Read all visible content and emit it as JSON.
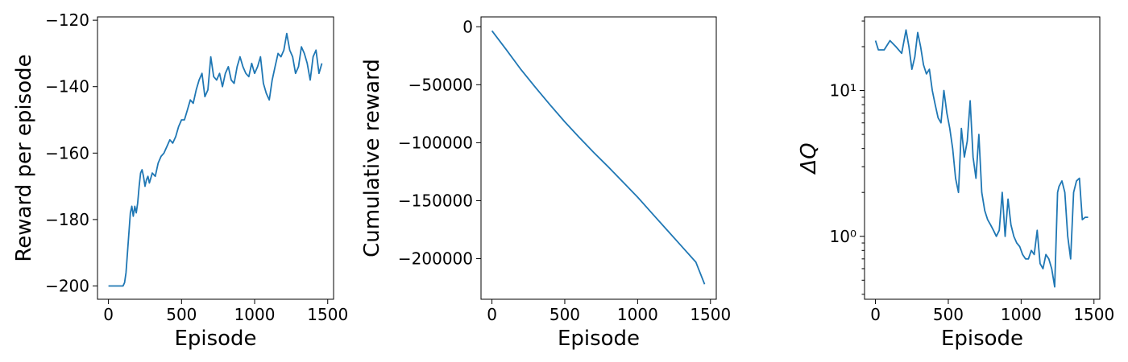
{
  "colors": {
    "series": "#1f77b4"
  },
  "chart_data": [
    {
      "type": "line",
      "xlabel": "Episode",
      "ylabel": "Reward per episode",
      "xlim": [
        -75,
        1540
      ],
      "ylim": [
        -204,
        -119
      ],
      "x_ticks": [
        0,
        500,
        1000,
        1500
      ],
      "x_tick_labels": [
        "0",
        "500",
        "1000",
        "1500"
      ],
      "y_ticks": [
        -200,
        -180,
        -160,
        -140,
        -120
      ],
      "y_tick_labels": [
        "−200",
        "−180",
        "−160",
        "−140",
        "−120"
      ],
      "series": [
        {
          "x": [
            0,
            50,
            100,
            110,
            120,
            130,
            140,
            150,
            160,
            170,
            180,
            190,
            200,
            210,
            220,
            230,
            240,
            250,
            260,
            270,
            280,
            300,
            320,
            340,
            360,
            380,
            400,
            420,
            440,
            460,
            480,
            500,
            520,
            540,
            560,
            580,
            600,
            620,
            640,
            660,
            680,
            700,
            720,
            740,
            760,
            780,
            800,
            820,
            840,
            860,
            880,
            900,
            920,
            940,
            960,
            980,
            1000,
            1020,
            1040,
            1060,
            1080,
            1100,
            1120,
            1140,
            1160,
            1180,
            1200,
            1220,
            1240,
            1260,
            1280,
            1300,
            1320,
            1340,
            1360,
            1380,
            1400,
            1420,
            1440,
            1460
          ],
          "y": [
            -200,
            -200,
            -200,
            -199,
            -196,
            -190,
            -184,
            -178,
            -176,
            -179,
            -176,
            -178,
            -175,
            -170,
            -166,
            -165,
            -167,
            -170,
            -168,
            -167,
            -169,
            -166,
            -167,
            -163,
            -161,
            -160,
            -158,
            -156,
            -157,
            -155,
            -152,
            -150,
            -150,
            -147,
            -144,
            -145,
            -141,
            -138,
            -136,
            -143,
            -141,
            -131,
            -137,
            -138,
            -136,
            -140,
            -136,
            -134,
            -138,
            -139,
            -134,
            -131,
            -134,
            -136,
            -137,
            -133,
            -136,
            -134,
            -131,
            -139,
            -142,
            -144,
            -138,
            -134,
            -130,
            -131,
            -129,
            -124,
            -129,
            -131,
            -136,
            -134,
            -128,
            -130,
            -133,
            -138,
            -131,
            -129,
            -136,
            -133
          ]
        }
      ]
    },
    {
      "type": "line",
      "xlabel": "Episode",
      "ylabel": "Cumulative reward",
      "xlim": [
        -75,
        1540
      ],
      "ylim": [
        -235000,
        8500
      ],
      "x_ticks": [
        0,
        500,
        1000,
        1500
      ],
      "x_tick_labels": [
        "0",
        "500",
        "1000",
        "1500"
      ],
      "y_ticks": [
        0,
        -50000,
        -100000,
        -150000,
        -200000
      ],
      "y_tick_labels": [
        "0",
        "−50000",
        "−100000",
        "−150000",
        "−200000"
      ],
      "series": [
        {
          "x": [
            0,
            100,
            200,
            300,
            400,
            500,
            600,
            700,
            800,
            900,
            1000,
            1100,
            1200,
            1300,
            1400,
            1460
          ],
          "y": [
            -3500,
            -20000,
            -37000,
            -52500,
            -67500,
            -82000,
            -95500,
            -108500,
            -121000,
            -134000,
            -147000,
            -161000,
            -175000,
            -189000,
            -203000,
            -222000
          ]
        }
      ]
    },
    {
      "type": "line",
      "xlabel": "Episode",
      "ylabel": "ΔQ",
      "yscale": "log",
      "xlim": [
        -75,
        1540
      ],
      "ylim": [
        0.37,
        32
      ],
      "x_ticks": [
        0,
        500,
        1000,
        1500
      ],
      "x_tick_labels": [
        "0",
        "500",
        "1000",
        "1500"
      ],
      "y_ticks": [
        1,
        10
      ],
      "y_tick_labels": [
        "10⁰",
        "10¹"
      ],
      "series": [
        {
          "x": [
            0,
            20,
            60,
            100,
            140,
            180,
            210,
            230,
            250,
            270,
            290,
            310,
            330,
            350,
            370,
            390,
            410,
            430,
            450,
            470,
            490,
            510,
            530,
            550,
            570,
            590,
            610,
            630,
            650,
            670,
            690,
            710,
            730,
            750,
            770,
            790,
            810,
            830,
            850,
            870,
            890,
            910,
            930,
            950,
            970,
            990,
            1010,
            1030,
            1050,
            1070,
            1090,
            1110,
            1130,
            1150,
            1170,
            1190,
            1210,
            1230,
            1250,
            1260,
            1280,
            1300,
            1320,
            1340,
            1360,
            1380,
            1400,
            1420,
            1440,
            1460
          ],
          "y": [
            22,
            19,
            19,
            22,
            20,
            18,
            26,
            20,
            14,
            17,
            25,
            20,
            15,
            13,
            14,
            10,
            8,
            6.5,
            6,
            10,
            7,
            5.5,
            4,
            2.5,
            2.0,
            5.5,
            3.5,
            4.5,
            8.5,
            3.5,
            2.5,
            5.0,
            2.0,
            1.5,
            1.3,
            1.2,
            1.1,
            1.0,
            1.1,
            2.0,
            1.0,
            1.8,
            1.2,
            1.0,
            0.9,
            0.85,
            0.75,
            0.7,
            0.7,
            0.8,
            0.75,
            1.1,
            0.65,
            0.6,
            0.75,
            0.7,
            0.6,
            0.45,
            2.0,
            2.2,
            2.4,
            2.0,
            1.0,
            0.7,
            2.0,
            2.4,
            2.5,
            1.3,
            1.35,
            1.35
          ]
        }
      ]
    }
  ]
}
